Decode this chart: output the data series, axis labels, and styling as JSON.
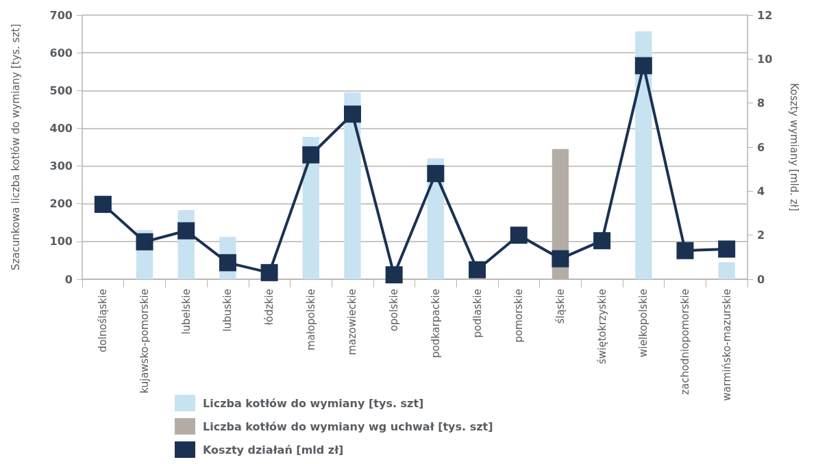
{
  "chart_data": {
    "type": "bar",
    "ylabel": "Szacunkowa liczba kotłów do wymiany [tys. szt]",
    "y2label": "Koszty wymiany [mld. zł]",
    "categories": [
      "dolnośląskie",
      "kujawsko-pomorskie",
      "lubelskie",
      "lubuskie",
      "łódzkie",
      "małopolskie",
      "mazowieckie",
      "opolskie",
      "podkarpackie",
      "podlaskie",
      "pomorskie",
      "śląskie",
      "świętokrzyskie",
      "wielkopolskie",
      "zachodniopomorskie",
      "warmińsko-mazurskie"
    ],
    "series": [
      {
        "name": "Liczba kotłów do wymiany [tys. szt]",
        "color": "#c7e2f1",
        "values": [
          null,
          130,
          183,
          112,
          null,
          377,
          495,
          null,
          320,
          null,
          null,
          null,
          null,
          657,
          null,
          45
        ]
      },
      {
        "name": "Liczba kotłów do wymiany wg uchwał [tys. szt]",
        "color": "#b4ada6",
        "values": [
          null,
          null,
          null,
          null,
          null,
          null,
          null,
          null,
          null,
          null,
          null,
          345,
          null,
          null,
          null,
          null
        ]
      },
      {
        "name": "Koszty działań [mld zł]",
        "type": "line",
        "axis": "y2",
        "color": "#1a3152",
        "values": [
          3.4,
          1.7,
          2.2,
          0.75,
          0.3,
          5.65,
          7.5,
          0.2,
          4.8,
          0.43,
          2.0,
          0.93,
          1.75,
          9.7,
          1.3,
          1.37
        ]
      }
    ],
    "ylim": [
      0,
      700
    ],
    "yticks": [
      0,
      100,
      200,
      300,
      400,
      500,
      600,
      700
    ],
    "y2lim": [
      0,
      12
    ],
    "y2ticks": [
      0,
      2,
      4,
      6,
      8,
      10,
      12
    ],
    "grid": "y",
    "legend": "bottom",
    "marker": "square",
    "line_style": "solid"
  }
}
